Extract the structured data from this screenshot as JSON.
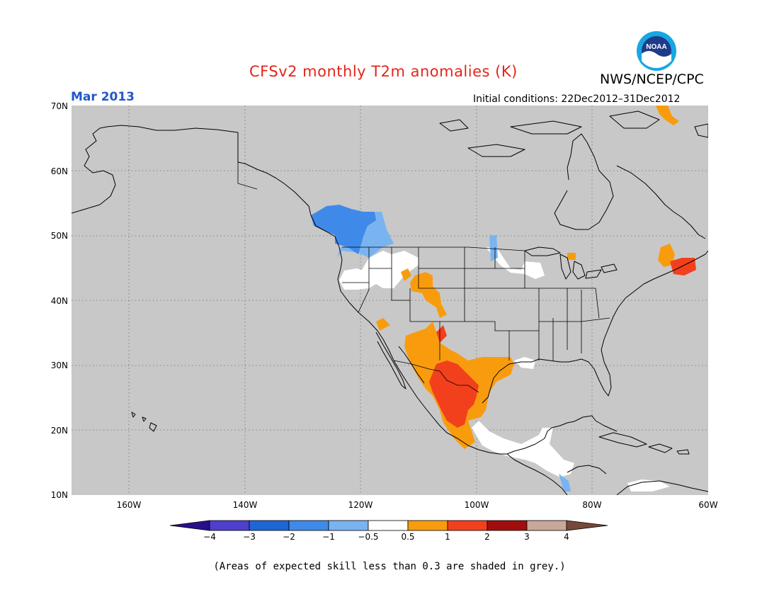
{
  "title": "CFSv2 monthly T2m anomalies (K)",
  "title_color": "#e4251b",
  "agency": "NWS/NCEP/CPC",
  "logo_text": "NOAA",
  "valid_month": "Mar 2013",
  "month_color": "#2357c9",
  "initial_conditions": "Initial conditions: 22Dec2012–31Dec2012",
  "lat_labels": [
    "70N",
    "60N",
    "50N",
    "40N",
    "30N",
    "20N",
    "10N"
  ],
  "lon_labels": [
    "160W",
    "140W",
    "120W",
    "100W",
    "80W",
    "60W"
  ],
  "colorbar": {
    "ticks": [
      "−4",
      "−3",
      "−2",
      "−1",
      "−0.5",
      "0.5",
      "1",
      "2",
      "3",
      "4"
    ],
    "colors": [
      "#2a0f8a",
      "#4e3fcc",
      "#1e66d4",
      "#3f8ae8",
      "#79b4f0",
      "#ffffff",
      "#f89c0e",
      "#f2401d",
      "#a20e0e",
      "#c8a89a",
      "#76483a"
    ]
  },
  "footnote": "(Areas of expected skill less than 0.3 are shaded in grey.)",
  "map": {
    "background_grey": "#c8c8c8",
    "lon_range": [
      -170,
      -60
    ],
    "lat_range": [
      10,
      70
    ],
    "anomaly_regions": [
      {
        "name": "pacific-northwest-cold",
        "class": "-2 to -1",
        "color": "#3f8ae8"
      },
      {
        "name": "northwest-fringe-cool",
        "class": "-1 to -0.5",
        "color": "#79b4f0"
      },
      {
        "name": "great-basin-neutral",
        "class": "-0.5 to 0.5",
        "color": "#ffffff"
      },
      {
        "name": "rockies-warm",
        "class": "0.5 to 1",
        "color": "#f89c0e"
      },
      {
        "name": "mexico-texas-warm",
        "class": "0.5 to 1",
        "color": "#f89c0e"
      },
      {
        "name": "northern-mexico-hot",
        "class": "1 to 2",
        "color": "#f2401d"
      },
      {
        "name": "maritimes-hot",
        "class": "1 to 2",
        "color": "#f2401d"
      },
      {
        "name": "central-america-neutral",
        "class": "-0.5 to 0.5",
        "color": "#ffffff"
      }
    ]
  }
}
